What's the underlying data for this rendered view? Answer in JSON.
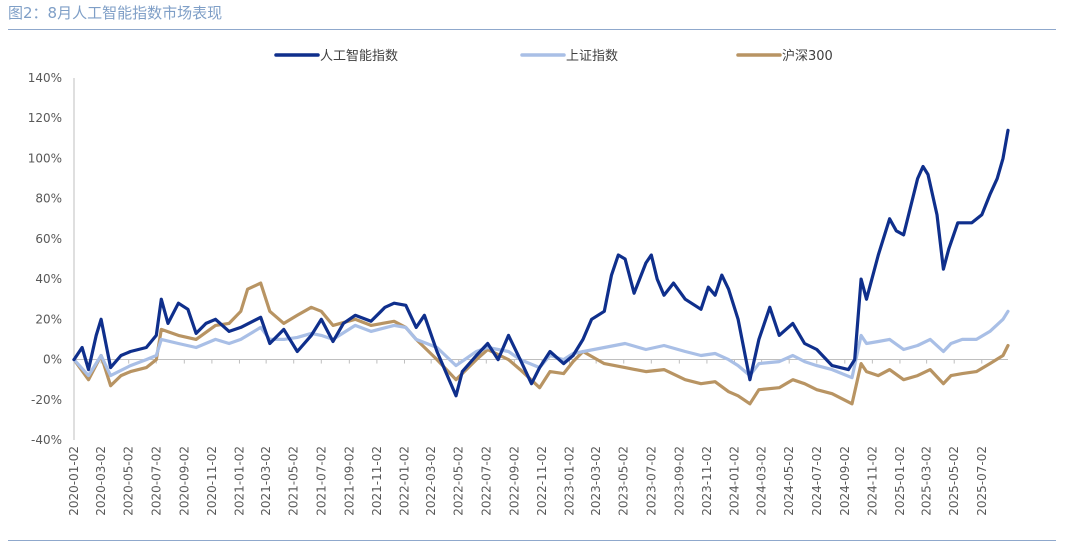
{
  "header": {
    "title": "图2：8月人工智能指数市场表现"
  },
  "colors": {
    "ai": "#0f2f8c",
    "sse": "#a9bfe6",
    "csi": "#b89463",
    "header": "#7f9fc7",
    "axis": "#bfbfbf"
  },
  "chart_data": {
    "type": "line",
    "title": "图2：8月人工智能指数市场表现",
    "xlabel": "",
    "ylabel": "",
    "ylim": [
      -40,
      140
    ],
    "ytick_step": 20,
    "ytick_labels": [
      "-40%",
      "-20%",
      "0%",
      "20%",
      "40%",
      "60%",
      "80%",
      "100%",
      "120%",
      "140%"
    ],
    "x_tick_labels": [
      "2020-01-02",
      "2020-03-02",
      "2020-05-02",
      "2020-07-02",
      "2020-09-02",
      "2020-11-02",
      "2021-01-02",
      "2021-03-02",
      "2021-05-02",
      "2021-07-02",
      "2021-09-02",
      "2021-11-02",
      "2022-01-02",
      "2022-03-02",
      "2022-05-02",
      "2022-07-02",
      "2022-09-02",
      "2022-11-02",
      "2023-01-02",
      "2023-03-02",
      "2023-05-02",
      "2023-07-02",
      "2023-09-02",
      "2023-11-02",
      "2024-01-02",
      "2024-03-02",
      "2024-05-02",
      "2024-07-02",
      "2024-09-02",
      "2024-11-02",
      "2025-01-02",
      "2025-03-02",
      "2025-05-02",
      "2025-07-02"
    ],
    "x_range": [
      "2020-01-02",
      "2025-08-29"
    ],
    "legend_position": "top",
    "grid": false,
    "series": [
      {
        "name": "人工智能指数",
        "color": "#0f2f8c",
        "points": [
          [
            "2020-01-02",
            0
          ],
          [
            "2020-01-20",
            6
          ],
          [
            "2020-02-03",
            -5
          ],
          [
            "2020-02-20",
            12
          ],
          [
            "2020-03-02",
            20
          ],
          [
            "2020-03-23",
            -4
          ],
          [
            "2020-04-15",
            2
          ],
          [
            "2020-05-06",
            4
          ],
          [
            "2020-06-10",
            6
          ],
          [
            "2020-07-02",
            12
          ],
          [
            "2020-07-13",
            30
          ],
          [
            "2020-07-28",
            18
          ],
          [
            "2020-08-20",
            28
          ],
          [
            "2020-09-10",
            25
          ],
          [
            "2020-09-28",
            13
          ],
          [
            "2020-10-20",
            18
          ],
          [
            "2020-11-10",
            20
          ],
          [
            "2020-12-10",
            14
          ],
          [
            "2021-01-05",
            16
          ],
          [
            "2021-02-18",
            21
          ],
          [
            "2021-03-10",
            8
          ],
          [
            "2021-04-10",
            15
          ],
          [
            "2021-05-10",
            4
          ],
          [
            "2021-06-10",
            12
          ],
          [
            "2021-07-02",
            20
          ],
          [
            "2021-07-28",
            9
          ],
          [
            "2021-08-20",
            18
          ],
          [
            "2021-09-15",
            22
          ],
          [
            "2021-10-20",
            19
          ],
          [
            "2021-11-20",
            26
          ],
          [
            "2021-12-10",
            28
          ],
          [
            "2022-01-05",
            27
          ],
          [
            "2022-01-28",
            16
          ],
          [
            "2022-02-15",
            22
          ],
          [
            "2022-03-15",
            4
          ],
          [
            "2022-04-26",
            -18
          ],
          [
            "2022-05-10",
            -6
          ],
          [
            "2022-06-10",
            2
          ],
          [
            "2022-07-05",
            8
          ],
          [
            "2022-07-28",
            0
          ],
          [
            "2022-08-20",
            12
          ],
          [
            "2022-09-15",
            0
          ],
          [
            "2022-10-10",
            -12
          ],
          [
            "2022-10-28",
            -4
          ],
          [
            "2022-11-20",
            4
          ],
          [
            "2022-12-20",
            -2
          ],
          [
            "2023-01-10",
            2
          ],
          [
            "2023-02-01",
            10
          ],
          [
            "2023-02-20",
            20
          ],
          [
            "2023-03-20",
            24
          ],
          [
            "2023-04-05",
            42
          ],
          [
            "2023-04-20",
            52
          ],
          [
            "2023-05-05",
            50
          ],
          [
            "2023-05-25",
            33
          ],
          [
            "2023-06-20",
            48
          ],
          [
            "2023-07-02",
            52
          ],
          [
            "2023-07-15",
            40
          ],
          [
            "2023-07-30",
            32
          ],
          [
            "2023-08-20",
            38
          ],
          [
            "2023-09-15",
            30
          ],
          [
            "2023-10-20",
            25
          ],
          [
            "2023-11-05",
            36
          ],
          [
            "2023-11-20",
            32
          ],
          [
            "2023-12-05",
            42
          ],
          [
            "2023-12-20",
            35
          ],
          [
            "2024-01-10",
            20
          ],
          [
            "2024-02-05",
            -10
          ],
          [
            "2024-02-25",
            10
          ],
          [
            "2024-03-20",
            26
          ],
          [
            "2024-04-10",
            12
          ],
          [
            "2024-05-10",
            18
          ],
          [
            "2024-06-05",
            8
          ],
          [
            "2024-07-02",
            5
          ],
          [
            "2024-08-05",
            -3
          ],
          [
            "2024-09-10",
            -5
          ],
          [
            "2024-09-24",
            0
          ],
          [
            "2024-10-08",
            40
          ],
          [
            "2024-10-20",
            30
          ],
          [
            "2024-11-15",
            52
          ],
          [
            "2024-12-10",
            70
          ],
          [
            "2024-12-25",
            64
          ],
          [
            "2025-01-10",
            62
          ],
          [
            "2025-02-10",
            90
          ],
          [
            "2025-02-22",
            96
          ],
          [
            "2025-03-05",
            92
          ],
          [
            "2025-03-25",
            72
          ],
          [
            "2025-04-08",
            45
          ],
          [
            "2025-04-20",
            55
          ],
          [
            "2025-05-10",
            68
          ],
          [
            "2025-06-10",
            68
          ],
          [
            "2025-07-02",
            72
          ],
          [
            "2025-07-20",
            82
          ],
          [
            "2025-08-05",
            90
          ],
          [
            "2025-08-18",
            100
          ],
          [
            "2025-08-29",
            114
          ]
        ]
      },
      {
        "name": "上证指数",
        "color": "#a9bfe6",
        "points": [
          [
            "2020-01-02",
            0
          ],
          [
            "2020-02-03",
            -8
          ],
          [
            "2020-03-02",
            2
          ],
          [
            "2020-03-23",
            -8
          ],
          [
            "2020-05-06",
            -3
          ],
          [
            "2020-06-10",
            0
          ],
          [
            "2020-07-02",
            2
          ],
          [
            "2020-07-13",
            10
          ],
          [
            "2020-08-20",
            8
          ],
          [
            "2020-09-28",
            6
          ],
          [
            "2020-11-10",
            10
          ],
          [
            "2020-12-10",
            8
          ],
          [
            "2021-01-05",
            10
          ],
          [
            "2021-02-18",
            16
          ],
          [
            "2021-03-10",
            10
          ],
          [
            "2021-04-10",
            10
          ],
          [
            "2021-05-10",
            11
          ],
          [
            "2021-06-10",
            13
          ],
          [
            "2021-07-02",
            12
          ],
          [
            "2021-07-28",
            10
          ],
          [
            "2021-09-15",
            17
          ],
          [
            "2021-10-20",
            14
          ],
          [
            "2021-12-10",
            17
          ],
          [
            "2022-01-05",
            16
          ],
          [
            "2022-01-28",
            10
          ],
          [
            "2022-03-15",
            6
          ],
          [
            "2022-04-26",
            -3
          ],
          [
            "2022-06-10",
            4
          ],
          [
            "2022-07-05",
            6
          ],
          [
            "2022-08-20",
            4
          ],
          [
            "2022-09-15",
            0
          ],
          [
            "2022-10-28",
            -4
          ],
          [
            "2022-11-20",
            2
          ],
          [
            "2022-12-20",
            0
          ],
          [
            "2023-01-10",
            3
          ],
          [
            "2023-03-20",
            6
          ],
          [
            "2023-05-05",
            8
          ],
          [
            "2023-06-20",
            5
          ],
          [
            "2023-07-30",
            7
          ],
          [
            "2023-09-15",
            4
          ],
          [
            "2023-10-20",
            2
          ],
          [
            "2023-11-20",
            3
          ],
          [
            "2023-12-20",
            0
          ],
          [
            "2024-01-10",
            -3
          ],
          [
            "2024-02-05",
            -8
          ],
          [
            "2024-02-25",
            -2
          ],
          [
            "2024-04-10",
            -1
          ],
          [
            "2024-05-10",
            2
          ],
          [
            "2024-06-05",
            -1
          ],
          [
            "2024-07-02",
            -3
          ],
          [
            "2024-08-05",
            -5
          ],
          [
            "2024-09-18",
            -9
          ],
          [
            "2024-10-08",
            12
          ],
          [
            "2024-10-20",
            8
          ],
          [
            "2024-11-15",
            9
          ],
          [
            "2024-12-10",
            10
          ],
          [
            "2025-01-10",
            5
          ],
          [
            "2025-02-10",
            7
          ],
          [
            "2025-03-10",
            10
          ],
          [
            "2025-04-08",
            4
          ],
          [
            "2025-04-25",
            8
          ],
          [
            "2025-05-20",
            10
          ],
          [
            "2025-06-20",
            10
          ],
          [
            "2025-07-20",
            14
          ],
          [
            "2025-08-18",
            20
          ],
          [
            "2025-08-29",
            24
          ]
        ]
      },
      {
        "name": "沪深300",
        "color": "#b89463",
        "points": [
          [
            "2020-01-02",
            0
          ],
          [
            "2020-02-03",
            -10
          ],
          [
            "2020-03-02",
            2
          ],
          [
            "2020-03-23",
            -13
          ],
          [
            "2020-04-15",
            -8
          ],
          [
            "2020-05-06",
            -6
          ],
          [
            "2020-06-10",
            -4
          ],
          [
            "2020-07-02",
            0
          ],
          [
            "2020-07-13",
            15
          ],
          [
            "2020-08-20",
            12
          ],
          [
            "2020-09-28",
            10
          ],
          [
            "2020-11-10",
            17
          ],
          [
            "2020-12-10",
            18
          ],
          [
            "2021-01-05",
            24
          ],
          [
            "2021-01-20",
            35
          ],
          [
            "2021-02-18",
            38
          ],
          [
            "2021-03-10",
            24
          ],
          [
            "2021-04-10",
            18
          ],
          [
            "2021-05-10",
            22
          ],
          [
            "2021-06-10",
            26
          ],
          [
            "2021-07-02",
            24
          ],
          [
            "2021-07-28",
            17
          ],
          [
            "2021-09-15",
            20
          ],
          [
            "2021-10-20",
            17
          ],
          [
            "2021-12-10",
            19
          ],
          [
            "2022-01-05",
            16
          ],
          [
            "2022-01-28",
            10
          ],
          [
            "2022-03-15",
            0
          ],
          [
            "2022-04-26",
            -10
          ],
          [
            "2022-06-10",
            0
          ],
          [
            "2022-07-05",
            5
          ],
          [
            "2022-08-20",
            0
          ],
          [
            "2022-09-15",
            -5
          ],
          [
            "2022-10-28",
            -14
          ],
          [
            "2022-11-20",
            -6
          ],
          [
            "2022-12-20",
            -7
          ],
          [
            "2023-01-10",
            -1
          ],
          [
            "2023-02-01",
            4
          ],
          [
            "2023-03-20",
            -2
          ],
          [
            "2023-05-05",
            -4
          ],
          [
            "2023-06-20",
            -6
          ],
          [
            "2023-07-30",
            -5
          ],
          [
            "2023-09-15",
            -10
          ],
          [
            "2023-10-20",
            -12
          ],
          [
            "2023-11-20",
            -11
          ],
          [
            "2023-12-20",
            -16
          ],
          [
            "2024-01-10",
            -18
          ],
          [
            "2024-02-05",
            -22
          ],
          [
            "2024-02-25",
            -15
          ],
          [
            "2024-04-10",
            -14
          ],
          [
            "2024-05-10",
            -10
          ],
          [
            "2024-06-05",
            -12
          ],
          [
            "2024-07-02",
            -15
          ],
          [
            "2024-08-05",
            -17
          ],
          [
            "2024-09-18",
            -22
          ],
          [
            "2024-10-08",
            -2
          ],
          [
            "2024-10-20",
            -6
          ],
          [
            "2024-11-15",
            -8
          ],
          [
            "2024-12-10",
            -5
          ],
          [
            "2025-01-10",
            -10
          ],
          [
            "2025-02-10",
            -8
          ],
          [
            "2025-03-10",
            -5
          ],
          [
            "2025-04-08",
            -12
          ],
          [
            "2025-04-25",
            -8
          ],
          [
            "2025-05-20",
            -7
          ],
          [
            "2025-06-20",
            -6
          ],
          [
            "2025-07-20",
            -2
          ],
          [
            "2025-08-18",
            2
          ],
          [
            "2025-08-29",
            7
          ]
        ]
      }
    ]
  }
}
